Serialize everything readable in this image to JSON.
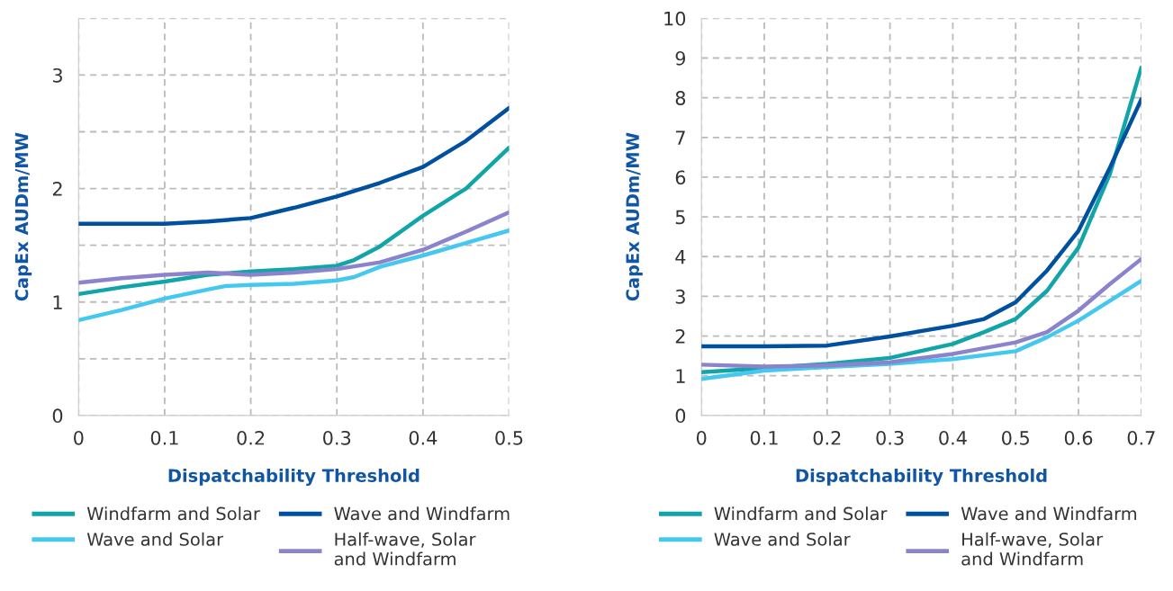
{
  "chart_data": [
    {
      "type": "line",
      "xlabel": "Dispatchability Threshold",
      "ylabel": "CapEx AUDm/MW",
      "xlim": [
        0,
        0.5
      ],
      "ylim": [
        0,
        3.5
      ],
      "xticks": [
        0,
        0.1,
        0.2,
        0.3,
        0.4,
        0.5
      ],
      "yticks": [
        0,
        {
          "value": 0.5,
          "label": null
        },
        1,
        {
          "value": 1.5,
          "label": null
        },
        2,
        {
          "value": 2.5,
          "label": null
        },
        3,
        {
          "value": 3.5,
          "label": null
        }
      ],
      "grid": true,
      "legend": "bottom",
      "line_style": "solid",
      "marker": "none",
      "series": [
        {
          "name": "Windfarm and Solar",
          "color": "#12a5a8",
          "x": [
            0,
            0.05,
            0.1,
            0.15,
            0.2,
            0.25,
            0.3,
            0.32,
            0.35,
            0.4,
            0.45,
            0.5
          ],
          "values": [
            1.07,
            1.13,
            1.18,
            1.24,
            1.27,
            1.29,
            1.32,
            1.37,
            1.49,
            1.76,
            2.0,
            2.36
          ]
        },
        {
          "name": "Wave and Solar",
          "color": "#45c8f0",
          "x": [
            0,
            0.05,
            0.1,
            0.15,
            0.17,
            0.2,
            0.25,
            0.3,
            0.32,
            0.35,
            0.4,
            0.45,
            0.5
          ],
          "values": [
            0.84,
            0.93,
            1.03,
            1.11,
            1.14,
            1.15,
            1.16,
            1.19,
            1.22,
            1.31,
            1.41,
            1.52,
            1.63
          ]
        },
        {
          "name": "Wave and Windfarm",
          "color": "#0050a0",
          "x": [
            0,
            0.1,
            0.15,
            0.2,
            0.25,
            0.3,
            0.35,
            0.4,
            0.45,
            0.5
          ],
          "values": [
            1.69,
            1.69,
            1.71,
            1.74,
            1.83,
            1.93,
            2.05,
            2.19,
            2.42,
            2.71
          ]
        },
        {
          "name": "Half-wave, Solar\nand Windfarm",
          "color": "#8b84cc",
          "x": [
            0,
            0.05,
            0.1,
            0.15,
            0.2,
            0.25,
            0.3,
            0.35,
            0.4,
            0.45,
            0.5
          ],
          "values": [
            1.17,
            1.21,
            1.24,
            1.26,
            1.24,
            1.26,
            1.29,
            1.35,
            1.46,
            1.62,
            1.79
          ]
        }
      ]
    },
    {
      "type": "line",
      "xlabel": "Dispatchability Threshold",
      "ylabel": "CapEx AUDm/MW",
      "xlim": [
        0,
        0.7
      ],
      "ylim": [
        0,
        10
      ],
      "xticks": [
        0,
        0.1,
        0.2,
        0.3,
        0.4,
        0.5,
        0.6,
        0.7
      ],
      "yticks": [
        0,
        1,
        2,
        3,
        4,
        5,
        6,
        7,
        8,
        9,
        10
      ],
      "grid": true,
      "legend": "bottom",
      "line_style": "solid",
      "marker": "none",
      "series": [
        {
          "name": "Windfarm and Solar",
          "color": "#12a5a8",
          "x": [
            0,
            0.1,
            0.2,
            0.3,
            0.4,
            0.45,
            0.5,
            0.55,
            0.6,
            0.65,
            0.7
          ],
          "values": [
            1.09,
            1.19,
            1.3,
            1.45,
            1.8,
            2.1,
            2.43,
            3.14,
            4.23,
            6.08,
            8.76
          ]
        },
        {
          "name": "Wave and Solar",
          "color": "#45c8f0",
          "x": [
            0,
            0.1,
            0.2,
            0.3,
            0.4,
            0.5,
            0.55,
            0.6,
            0.65,
            0.7
          ],
          "values": [
            0.92,
            1.13,
            1.22,
            1.3,
            1.42,
            1.62,
            1.97,
            2.39,
            2.89,
            3.39
          ]
        },
        {
          "name": "Wave and Windfarm",
          "color": "#0050a0",
          "x": [
            0,
            0.1,
            0.2,
            0.3,
            0.4,
            0.45,
            0.5,
            0.55,
            0.6,
            0.65,
            0.7
          ],
          "values": [
            1.74,
            1.74,
            1.76,
            1.99,
            2.26,
            2.43,
            2.85,
            3.65,
            4.65,
            6.24,
            7.96
          ]
        },
        {
          "name": "Half-wave, Solar\nand Windfarm",
          "color": "#8b84cc",
          "x": [
            0,
            0.1,
            0.2,
            0.3,
            0.4,
            0.5,
            0.55,
            0.6,
            0.65,
            0.7
          ],
          "values": [
            1.28,
            1.23,
            1.26,
            1.34,
            1.55,
            1.84,
            2.1,
            2.64,
            3.31,
            3.94
          ]
        }
      ]
    }
  ]
}
